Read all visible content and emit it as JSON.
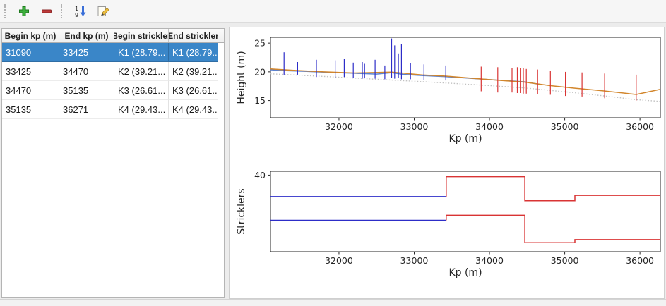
{
  "app": {
    "background": "#ececec"
  },
  "toolbar": {
    "buttons": [
      {
        "id": "add-row",
        "icon": "plus-icon"
      },
      {
        "id": "remove-row",
        "icon": "minus-icon"
      },
      {
        "id": "sort-rows",
        "icon": "sort-numeric-icon"
      },
      {
        "id": "edit-row",
        "icon": "edit-icon"
      }
    ]
  },
  "table": {
    "selection_color": "#3a86c8",
    "headers": [
      "Begin kp (m)",
      "End kp (m)",
      "Begin strickler",
      "End strickler"
    ],
    "rows": [
      {
        "selected": true,
        "cells": [
          "31090",
          "33425",
          "K1 (28.79...",
          "K1 (28.79..."
        ]
      },
      {
        "selected": false,
        "cells": [
          "33425",
          "34470",
          "K2 (39.21...",
          "K2 (39.21..."
        ]
      },
      {
        "selected": false,
        "cells": [
          "34470",
          "35135",
          "K3 (26.61...",
          "K3 (26.61..."
        ]
      },
      {
        "selected": false,
        "cells": [
          "35135",
          "36271",
          "K4 (29.43...",
          "K4 (29.43..."
        ]
      }
    ]
  },
  "chart_data": [
    {
      "type": "line",
      "title": "",
      "xlabel": "Kp (m)",
      "ylabel": "Height (m)",
      "xlim": [
        31090,
        36271
      ],
      "ylim": [
        12,
        26
      ],
      "xticks": [
        32000,
        33000,
        34000,
        35000,
        36000
      ],
      "yticks": [
        15,
        20,
        25
      ],
      "grid": false,
      "legend": "none",
      "series": [
        {
          "name": "height-line-blue",
          "color": "#5b82d0",
          "style": "solid",
          "width": 1.5,
          "points": [
            [
              31090,
              20.35
            ],
            [
              31300,
              20.2
            ],
            [
              31600,
              20.05
            ],
            [
              31900,
              19.9
            ],
            [
              32200,
              19.75
            ],
            [
              32500,
              19.6
            ],
            [
              32700,
              19.85
            ],
            [
              32850,
              19.55
            ],
            [
              33100,
              19.35
            ],
            [
              33425,
              19.15
            ],
            [
              33700,
              18.9
            ],
            [
              34000,
              18.65
            ],
            [
              34300,
              18.4
            ],
            [
              34470,
              18.25
            ],
            [
              34700,
              17.75
            ]
          ]
        },
        {
          "name": "height-line-orange",
          "color": "#d2862c",
          "style": "solid",
          "width": 1.5,
          "points": [
            [
              31090,
              20.5
            ],
            [
              31400,
              20.25
            ],
            [
              31800,
              20.0
            ],
            [
              32200,
              19.8
            ],
            [
              32700,
              19.95
            ],
            [
              33100,
              19.45
            ],
            [
              33425,
              19.25
            ],
            [
              33800,
              18.85
            ],
            [
              34200,
              18.45
            ],
            [
              34470,
              18.2
            ],
            [
              34800,
              17.6
            ],
            [
              35135,
              17.15
            ],
            [
              35500,
              16.7
            ],
            [
              35950,
              16.05
            ],
            [
              36271,
              16.95
            ]
          ]
        },
        {
          "name": "height-line-dotted",
          "color": "#c2c2c2",
          "style": "dotted",
          "width": 1.4,
          "points": [
            [
              31090,
              19.65
            ],
            [
              31800,
              19.2
            ],
            [
              32500,
              18.7
            ],
            [
              33425,
              18.05
            ],
            [
              34000,
              17.6
            ],
            [
              34470,
              17.2
            ],
            [
              35135,
              16.35
            ],
            [
              35600,
              15.7
            ],
            [
              35950,
              15.15
            ],
            [
              36271,
              14.85
            ]
          ]
        }
      ],
      "spikes": [
        {
          "name": "cross-sections-selected-reach",
          "color": "#2d2dc8",
          "items": [
            [
              31270,
              19.4,
              23.4
            ],
            [
              31450,
              19.5,
              21.7
            ],
            [
              31700,
              19.1,
              22.1
            ],
            [
              31950,
              19.0,
              22.0
            ],
            [
              32070,
              19.1,
              22.2
            ],
            [
              32190,
              18.9,
              21.6
            ],
            [
              32310,
              18.8,
              21.7
            ],
            [
              32340,
              18.9,
              21.4
            ],
            [
              32480,
              18.8,
              22.1
            ],
            [
              32610,
              18.7,
              21.1
            ],
            [
              32700,
              18.9,
              25.8
            ],
            [
              32740,
              18.8,
              24.6
            ],
            [
              32790,
              18.9,
              23.2
            ],
            [
              32830,
              18.7,
              24.9
            ],
            [
              32950,
              18.7,
              21.5
            ],
            [
              33130,
              18.6,
              21.3
            ],
            [
              33420,
              18.5,
              21.1
            ]
          ]
        },
        {
          "name": "cross-sections-other-reaches",
          "color": "#d93434",
          "items": [
            [
              33890,
              16.6,
              20.9
            ],
            [
              34110,
              16.4,
              20.8
            ],
            [
              34300,
              16.4,
              20.7
            ],
            [
              34370,
              16.3,
              20.8
            ],
            [
              34410,
              16.3,
              20.6
            ],
            [
              34450,
              16.2,
              20.7
            ],
            [
              34490,
              16.2,
              20.5
            ],
            [
              34640,
              16.1,
              20.4
            ],
            [
              34810,
              16.0,
              20.2
            ],
            [
              35010,
              15.8,
              20.0
            ],
            [
              35230,
              15.7,
              19.9
            ],
            [
              35530,
              15.4,
              19.7
            ],
            [
              35950,
              15.0,
              19.5
            ]
          ]
        }
      ]
    },
    {
      "type": "step",
      "title": "",
      "xlabel": "Kp (m)",
      "ylabel": "Stricklers",
      "xlim": [
        31090,
        36271
      ],
      "ylim": [
        0,
        42
      ],
      "xticks": [
        32000,
        33000,
        34000,
        35000,
        36000
      ],
      "yticks": [
        40
      ],
      "grid": false,
      "legend": "none",
      "series": [
        {
          "name": "major-strickler-selected",
          "color": "#2d2dc8",
          "style": "solid",
          "width": 1.5,
          "points": [
            [
              31090,
              28.79
            ],
            [
              33425,
              28.79
            ]
          ]
        },
        {
          "name": "major-strickler",
          "color": "#d93434",
          "style": "solid",
          "width": 1.5,
          "points": [
            [
              33425,
              28.79
            ],
            [
              33425,
              39.21
            ],
            [
              34470,
              39.21
            ],
            [
              34470,
              26.61
            ],
            [
              35135,
              26.61
            ],
            [
              35135,
              29.43
            ],
            [
              36271,
              29.43
            ]
          ]
        },
        {
          "name": "minor-strickler-selected",
          "color": "#2d2dc8",
          "style": "solid",
          "width": 1.5,
          "points": [
            [
              31090,
              16.4
            ],
            [
              33425,
              16.4
            ]
          ]
        },
        {
          "name": "minor-strickler",
          "color": "#d93434",
          "style": "solid",
          "width": 1.5,
          "points": [
            [
              33425,
              16.4
            ],
            [
              33425,
              19.0
            ],
            [
              34470,
              19.0
            ],
            [
              34470,
              4.7
            ],
            [
              35135,
              4.7
            ],
            [
              35135,
              6.3
            ],
            [
              36271,
              6.3
            ]
          ]
        }
      ]
    }
  ]
}
